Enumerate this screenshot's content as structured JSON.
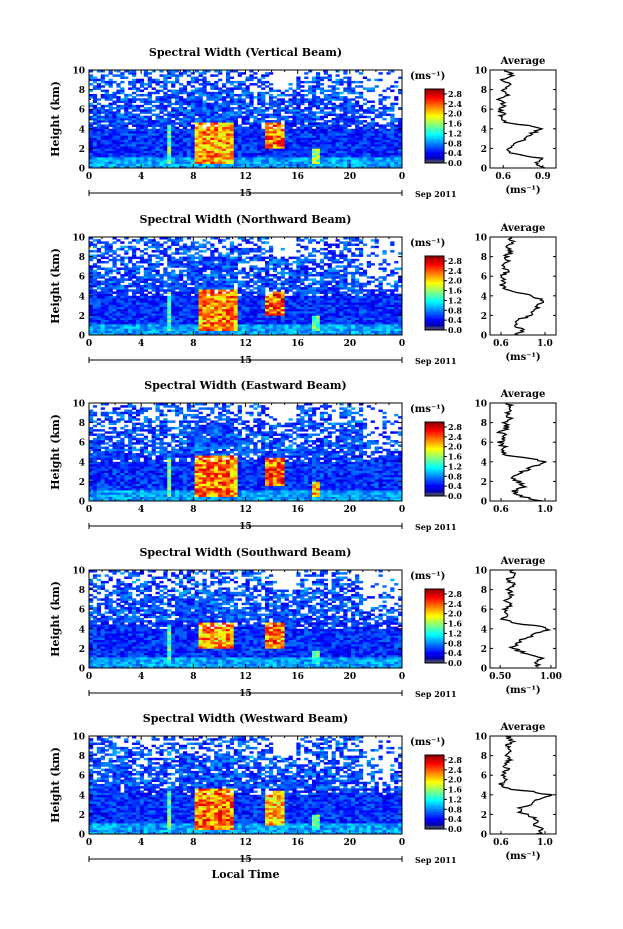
{
  "chart_data": [
    {
      "type": "heatmap",
      "title": "Spectral Width (Vertical Beam)",
      "xlabel": "Local Time",
      "ylabel": "Height (km)",
      "x_ticks": [
        "0",
        "4",
        "8",
        "12",
        "16",
        "20",
        "0"
      ],
      "y_ticks": [
        "0",
        "2",
        "4",
        "6",
        "8",
        "10"
      ],
      "xlim": [
        0,
        24
      ],
      "ylim": [
        0,
        10
      ],
      "date_label": "15",
      "date_suffix": "Sep 2011",
      "colorbar": {
        "label": "(ms⁻¹)",
        "ticks": [
          "0.0",
          "0.4",
          "0.8",
          "1.2",
          "1.6",
          "2.0",
          "2.4",
          "2.8"
        ],
        "range": [
          0,
          3.0
        ]
      },
      "high_regions": [
        {
          "t0": 6.0,
          "t1": 6.3,
          "h0": 0.5,
          "h1": 4.5,
          "v": 1.6
        },
        {
          "t0": 8.0,
          "t1": 11.0,
          "h0": 0.5,
          "h1": 4.6,
          "v": 2.4
        },
        {
          "t0": 13.5,
          "t1": 15.0,
          "h0": 2.0,
          "h1": 4.6,
          "v": 2.5
        },
        {
          "t0": 17.0,
          "t1": 17.6,
          "h0": 0.4,
          "h1": 2.0,
          "v": 1.7
        }
      ],
      "average": {
        "title": "Average",
        "xlabel": "(ms⁻¹)",
        "x_ticks": [
          "0.6",
          "0.9"
        ],
        "xlim": [
          0.5,
          1.0
        ],
        "height": [
          0,
          0.5,
          1,
          1.5,
          2,
          2.5,
          3,
          3.5,
          4,
          4.3,
          4.6,
          5,
          5.5,
          6,
          6.5,
          7,
          7.5,
          8,
          8.5,
          9,
          9.5,
          10
        ],
        "value": [
          0.93,
          0.85,
          0.89,
          0.65,
          0.64,
          0.7,
          0.76,
          0.82,
          0.88,
          0.82,
          0.62,
          0.58,
          0.6,
          0.57,
          0.61,
          0.58,
          0.63,
          0.59,
          0.64,
          0.6,
          0.66,
          0.62
        ]
      }
    },
    {
      "type": "heatmap",
      "title": "Spectral Width (Northward Beam)",
      "xlabel": "Local Time",
      "ylabel": "Height (km)",
      "x_ticks": [
        "0",
        "4",
        "8",
        "12",
        "16",
        "20",
        "0"
      ],
      "y_ticks": [
        "0",
        "2",
        "4",
        "6",
        "8",
        "10"
      ],
      "xlim": [
        0,
        24
      ],
      "ylim": [
        0,
        10
      ],
      "date_label": "15",
      "date_suffix": "Sep 2011",
      "colorbar": {
        "label": "(ms⁻¹)",
        "ticks": [
          "0.0",
          "0.4",
          "0.8",
          "1.2",
          "1.6",
          "2.0",
          "2.4",
          "2.8"
        ],
        "range": [
          0,
          3.0
        ]
      },
      "high_regions": [
        {
          "t0": 6.0,
          "t1": 6.4,
          "h0": 0.5,
          "h1": 4.5,
          "v": 1.6
        },
        {
          "t0": 8.5,
          "t1": 11.5,
          "h0": 0.4,
          "h1": 4.6,
          "v": 2.5
        },
        {
          "t0": 13.5,
          "t1": 15.0,
          "h0": 2.0,
          "h1": 4.5,
          "v": 2.6
        },
        {
          "t0": 17.0,
          "t1": 17.6,
          "h0": 0.4,
          "h1": 2.0,
          "v": 1.6
        }
      ],
      "average": {
        "title": "Average",
        "xlabel": "(ms⁻¹)",
        "x_ticks": [
          "0.6",
          "1.0"
        ],
        "xlim": [
          0.5,
          1.1
        ],
        "height": [
          0,
          0.5,
          1,
          1.5,
          2,
          2.5,
          3,
          3.5,
          4,
          4.3,
          4.6,
          5,
          5.5,
          6,
          6.5,
          7,
          7.5,
          8,
          8.5,
          9,
          9.5,
          10
        ],
        "value": [
          0.75,
          0.8,
          0.72,
          0.76,
          0.85,
          0.9,
          0.95,
          0.97,
          0.9,
          0.78,
          0.65,
          0.6,
          0.63,
          0.6,
          0.66,
          0.62,
          0.68,
          0.64,
          0.7,
          0.66,
          0.72,
          0.68
        ]
      }
    },
    {
      "type": "heatmap",
      "title": "Spectral Width (Eastward Beam)",
      "xlabel": "Local Time",
      "ylabel": "Height (km)",
      "x_ticks": [
        "0",
        "4",
        "8",
        "12",
        "16",
        "20",
        "0"
      ],
      "y_ticks": [
        "0",
        "2",
        "4",
        "6",
        "8",
        "10"
      ],
      "xlim": [
        0,
        24
      ],
      "ylim": [
        0,
        10
      ],
      "date_label": "15",
      "date_suffix": "Sep 2011",
      "colorbar": {
        "label": "(ms⁻¹)",
        "ticks": [
          "0.0",
          "0.4",
          "0.8",
          "1.2",
          "1.6",
          "2.0",
          "2.4",
          "2.8"
        ],
        "range": [
          0,
          3.0
        ]
      },
      "high_regions": [
        {
          "t0": 6.0,
          "t1": 6.3,
          "h0": 0.5,
          "h1": 4.5,
          "v": 1.6
        },
        {
          "t0": 8.0,
          "t1": 11.5,
          "h0": 0.4,
          "h1": 4.6,
          "v": 2.5
        },
        {
          "t0": 13.5,
          "t1": 15.0,
          "h0": 1.5,
          "h1": 4.5,
          "v": 2.6
        },
        {
          "t0": 17.0,
          "t1": 17.6,
          "h0": 0.4,
          "h1": 2.0,
          "v": 2.3
        }
      ],
      "average": {
        "title": "Average",
        "xlabel": "",
        "x_ticks": [
          "0.6",
          "1.0"
        ],
        "xlim": [
          0.5,
          1.1
        ],
        "height": [
          0,
          0.5,
          1,
          1.5,
          2,
          2.5,
          3,
          3.5,
          4,
          4.3,
          4.6,
          5,
          5.5,
          6,
          6.5,
          7,
          7.5,
          8,
          8.5,
          9,
          9.5,
          10
        ],
        "value": [
          0.95,
          0.78,
          0.72,
          0.82,
          0.75,
          0.7,
          0.8,
          0.9,
          1.0,
          0.88,
          0.68,
          0.6,
          0.63,
          0.59,
          0.64,
          0.6,
          0.66,
          0.62,
          0.68,
          0.64,
          0.7,
          0.66
        ]
      }
    },
    {
      "type": "heatmap",
      "title": "Spectral Width (Southward Beam)",
      "xlabel": "Local Time",
      "ylabel": "Height (km)",
      "x_ticks": [
        "0",
        "4",
        "8",
        "12",
        "16",
        "20",
        "0"
      ],
      "y_ticks": [
        "0",
        "2",
        "4",
        "6",
        "8",
        "10"
      ],
      "xlim": [
        0,
        24
      ],
      "ylim": [
        0,
        10
      ],
      "date_label": "15",
      "date_suffix": "Sep 2011",
      "colorbar": {
        "label": "(ms⁻¹)",
        "ticks": [
          "0.0",
          "0.4",
          "0.8",
          "1.2",
          "1.6",
          "2.0",
          "2.4",
          "2.8"
        ],
        "range": [
          0,
          3.0
        ]
      },
      "high_regions": [
        {
          "t0": 6.0,
          "t1": 6.3,
          "h0": 0.5,
          "h1": 4.5,
          "v": 1.5
        },
        {
          "t0": 8.5,
          "t1": 11.0,
          "h0": 2.0,
          "h1": 4.6,
          "v": 2.4
        },
        {
          "t0": 13.5,
          "t1": 15.0,
          "h0": 2.0,
          "h1": 4.6,
          "v": 2.5
        },
        {
          "t0": 17.0,
          "t1": 17.6,
          "h0": 0.4,
          "h1": 1.8,
          "v": 1.4
        }
      ],
      "average": {
        "title": "Average",
        "xlabel": "(ms⁻¹)",
        "x_ticks": [
          "0.50",
          "1.00"
        ],
        "xlim": [
          0.4,
          1.05
        ],
        "height": [
          0,
          0.5,
          1,
          1.5,
          2,
          2.5,
          3,
          3.5,
          4,
          4.3,
          4.6,
          5,
          5.5,
          6,
          6.5,
          7,
          7.5,
          8,
          8.5,
          9,
          9.5,
          10
        ],
        "value": [
          0.9,
          0.86,
          0.92,
          0.75,
          0.62,
          0.66,
          0.74,
          0.85,
          0.98,
          0.85,
          0.62,
          0.52,
          0.58,
          0.54,
          0.6,
          0.56,
          0.62,
          0.57,
          0.63,
          0.58,
          0.64,
          0.6
        ]
      }
    },
    {
      "type": "heatmap",
      "title": "Spectral Width (Westward Beam)",
      "xlabel": "Local Time",
      "ylabel": "Height (km)",
      "x_ticks": [
        "0",
        "4",
        "8",
        "12",
        "16",
        "20",
        "0"
      ],
      "y_ticks": [
        "0",
        "2",
        "4",
        "6",
        "8",
        "10"
      ],
      "xlim": [
        0,
        24
      ],
      "ylim": [
        0,
        10
      ],
      "date_label": "15",
      "date_suffix": "Sep 2011",
      "colorbar": {
        "label": "(ms⁻¹)",
        "ticks": [
          "0.0",
          "0.4",
          "0.8",
          "1.2",
          "1.6",
          "2.0",
          "2.4",
          "2.8"
        ],
        "range": [
          0,
          3.0
        ]
      },
      "high_regions": [
        {
          "t0": 6.0,
          "t1": 6.3,
          "h0": 0.5,
          "h1": 4.5,
          "v": 1.5
        },
        {
          "t0": 8.0,
          "t1": 11.0,
          "h0": 0.4,
          "h1": 4.6,
          "v": 2.5
        },
        {
          "t0": 13.5,
          "t1": 15.0,
          "h0": 1.0,
          "h1": 4.5,
          "v": 2.3
        },
        {
          "t0": 17.0,
          "t1": 17.6,
          "h0": 0.4,
          "h1": 2.0,
          "v": 1.6
        }
      ],
      "average": {
        "title": "Average",
        "xlabel": "(ms⁻¹)",
        "x_ticks": [
          "0.6",
          "1.0"
        ],
        "xlim": [
          0.5,
          1.1
        ],
        "height": [
          0,
          0.5,
          1,
          1.5,
          2,
          2.5,
          3,
          3.5,
          4,
          4.3,
          4.6,
          5,
          5.5,
          6,
          6.5,
          7,
          7.5,
          8,
          8.5,
          9,
          9.5,
          10
        ],
        "value": [
          0.92,
          1.0,
          0.88,
          0.94,
          0.82,
          0.75,
          0.85,
          0.92,
          1.05,
          0.9,
          0.65,
          0.6,
          0.64,
          0.6,
          0.66,
          0.62,
          0.68,
          0.63,
          0.69,
          0.65,
          0.7,
          0.66
        ]
      }
    }
  ]
}
